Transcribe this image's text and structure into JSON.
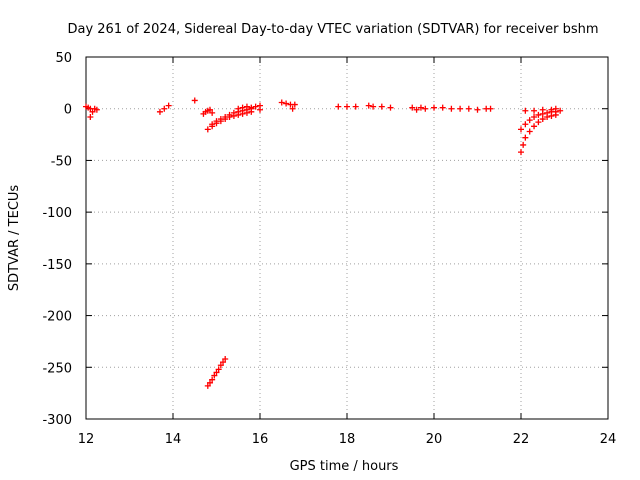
{
  "chart_data": {
    "type": "scatter",
    "title": "Day 261 of 2024, Sidereal Day-to-day VTEC variation (SDTVAR) for receiver bshm",
    "xlabel": "GPS time / hours",
    "ylabel": "SDTVAR / TECUs",
    "xlim": [
      12,
      24
    ],
    "ylim": [
      -300,
      50
    ],
    "xticks": [
      12,
      14,
      16,
      18,
      20,
      22,
      24
    ],
    "yticks": [
      50,
      0,
      -50,
      -100,
      -150,
      -200,
      -250,
      -300
    ],
    "grid": true,
    "marker": "+",
    "marker_color": "#ff0000",
    "series": [
      {
        "name": "SDTVAR",
        "points": [
          [
            12.0,
            2
          ],
          [
            12.05,
            1
          ],
          [
            12.1,
            0
          ],
          [
            12.15,
            -3
          ],
          [
            12.1,
            -8
          ],
          [
            12.2,
            0
          ],
          [
            12.25,
            -1
          ],
          [
            13.7,
            -3
          ],
          [
            13.8,
            0
          ],
          [
            13.9,
            3
          ],
          [
            14.5,
            8
          ],
          [
            14.7,
            -5
          ],
          [
            14.75,
            -3
          ],
          [
            14.8,
            -2
          ],
          [
            14.85,
            -1
          ],
          [
            14.9,
            -4
          ],
          [
            14.8,
            -20
          ],
          [
            14.9,
            -17
          ],
          [
            15.0,
            -14
          ],
          [
            15.1,
            -12
          ],
          [
            15.2,
            -10
          ],
          [
            15.3,
            -8
          ],
          [
            15.4,
            -7
          ],
          [
            15.5,
            -6
          ],
          [
            15.6,
            -5
          ],
          [
            15.7,
            -4
          ],
          [
            15.8,
            -3
          ],
          [
            14.9,
            -15
          ],
          [
            15.0,
            -12
          ],
          [
            15.1,
            -10
          ],
          [
            15.2,
            -8
          ],
          [
            15.3,
            -6
          ],
          [
            15.4,
            -4
          ],
          [
            15.5,
            -3
          ],
          [
            15.6,
            -2
          ],
          [
            15.7,
            -1
          ],
          [
            15.8,
            0
          ],
          [
            15.5,
            0
          ],
          [
            15.6,
            1
          ],
          [
            15.7,
            2
          ],
          [
            15.8,
            1
          ],
          [
            15.9,
            2
          ],
          [
            16.0,
            3
          ],
          [
            16.0,
            -1
          ],
          [
            14.8,
            -268
          ],
          [
            14.85,
            -265
          ],
          [
            14.9,
            -262
          ],
          [
            14.95,
            -258
          ],
          [
            15.0,
            -255
          ],
          [
            15.05,
            -252
          ],
          [
            15.1,
            -248
          ],
          [
            15.15,
            -245
          ],
          [
            15.2,
            -242
          ],
          [
            16.5,
            6
          ],
          [
            16.6,
            5
          ],
          [
            16.7,
            4
          ],
          [
            16.8,
            4
          ],
          [
            16.75,
            0
          ],
          [
            17.8,
            2
          ],
          [
            18.0,
            2
          ],
          [
            18.2,
            2
          ],
          [
            18.5,
            3
          ],
          [
            18.6,
            2
          ],
          [
            18.8,
            2
          ],
          [
            19.0,
            1
          ],
          [
            19.5,
            1
          ],
          [
            19.6,
            -1
          ],
          [
            19.7,
            1
          ],
          [
            19.8,
            0
          ],
          [
            20.0,
            1
          ],
          [
            20.2,
            1
          ],
          [
            20.4,
            0
          ],
          [
            20.6,
            0
          ],
          [
            20.8,
            0
          ],
          [
            21.0,
            -1
          ],
          [
            21.2,
            0
          ],
          [
            21.3,
            0
          ],
          [
            22.0,
            -42
          ],
          [
            22.05,
            -35
          ],
          [
            22.1,
            -28
          ],
          [
            22.2,
            -22
          ],
          [
            22.3,
            -17
          ],
          [
            22.4,
            -13
          ],
          [
            22.5,
            -10
          ],
          [
            22.6,
            -8
          ],
          [
            22.7,
            -7
          ],
          [
            22.8,
            -6
          ],
          [
            22.0,
            -20
          ],
          [
            22.1,
            -15
          ],
          [
            22.2,
            -11
          ],
          [
            22.3,
            -8
          ],
          [
            22.4,
            -6
          ],
          [
            22.5,
            -5
          ],
          [
            22.6,
            -4
          ],
          [
            22.7,
            -3
          ],
          [
            22.8,
            -3
          ],
          [
            22.1,
            -2
          ],
          [
            22.3,
            -2
          ],
          [
            22.5,
            -1
          ],
          [
            22.7,
            -1
          ],
          [
            22.8,
            0
          ],
          [
            22.9,
            -2
          ]
        ]
      }
    ]
  }
}
